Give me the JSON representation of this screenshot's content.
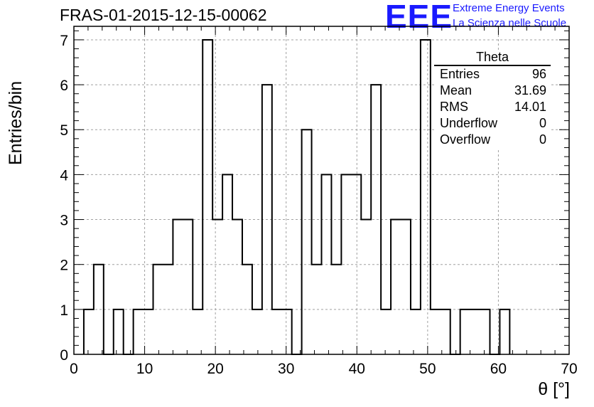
{
  "chart_data": {
    "type": "bar",
    "title": "FRAS-01-2015-12-15-00062",
    "xlabel": "θ [°]",
    "ylabel": "Entries/bin",
    "xlim": [
      0,
      70
    ],
    "ylim": [
      0,
      7.3
    ],
    "bin_width": 1.4,
    "x_start": 1.4,
    "values": [
      1,
      2,
      0,
      1,
      0,
      1,
      1,
      2,
      2,
      3,
      3,
      1,
      7,
      3,
      4,
      3,
      2,
      1,
      6,
      1,
      1,
      0,
      5,
      2,
      4,
      2,
      4,
      4,
      3,
      6,
      1,
      3,
      3,
      1,
      7,
      1,
      1,
      0,
      1,
      1,
      1,
      0,
      1
    ],
    "xticks": [
      0,
      10,
      20,
      30,
      40,
      50,
      60,
      70
    ],
    "yticks": [
      0,
      1,
      2,
      3,
      4,
      5,
      6,
      7
    ],
    "grid": true,
    "stats_box": {
      "title": "Theta",
      "rows": [
        {
          "label": "Entries",
          "value": "96"
        },
        {
          "label": "Mean",
          "value": "31.69"
        },
        {
          "label": "RMS",
          "value": "14.01"
        },
        {
          "label": "Underflow",
          "value": "0"
        },
        {
          "label": "Overflow",
          "value": "0"
        }
      ]
    }
  },
  "logo": {
    "mark": "EEE",
    "line1": "Extreme Energy Events",
    "line2": "La Scienza nelle Scuole",
    "color": "#1a1aff"
  }
}
